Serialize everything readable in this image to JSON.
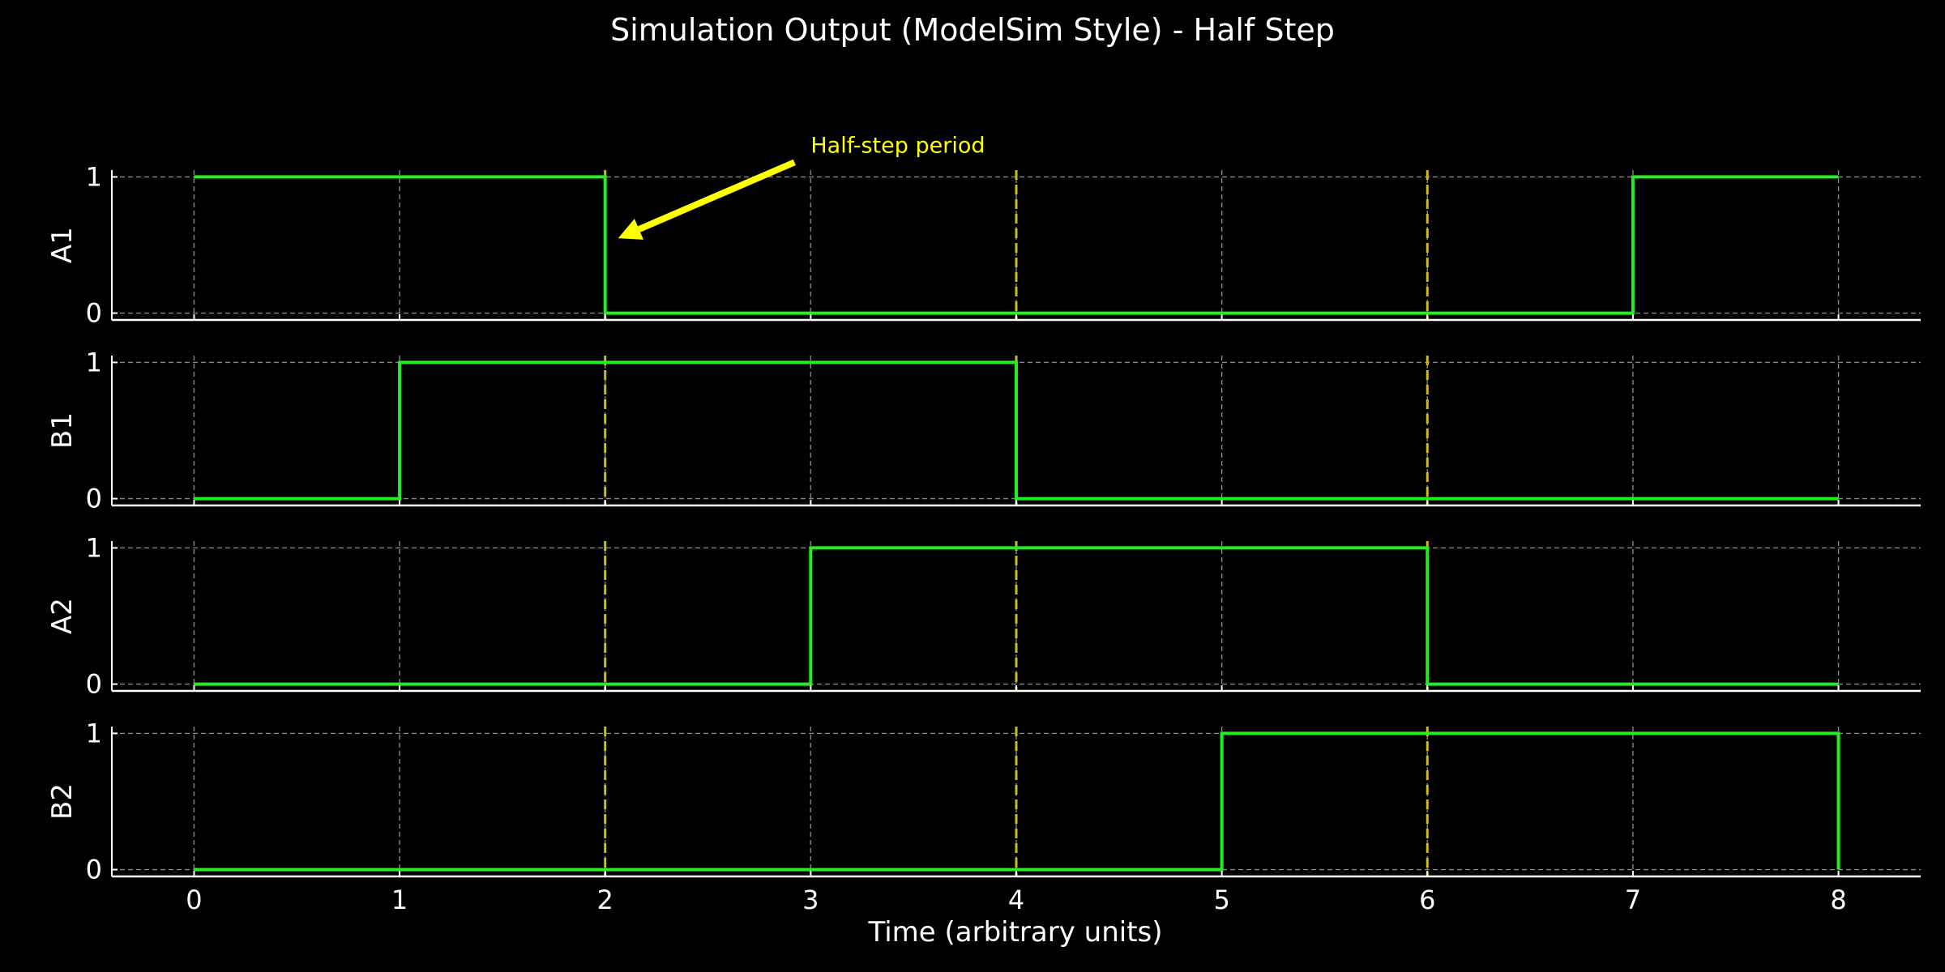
{
  "chart_data": {
    "type": "line",
    "title": "Simulation Output (ModelSim Style) - Half Step",
    "xlabel": "Time (arbitrary units)",
    "x_ticks": [
      0,
      1,
      2,
      3,
      4,
      5,
      6,
      7,
      8
    ],
    "x_tick_labels": [
      "0",
      "1",
      "2",
      "3",
      "4",
      "5",
      "6",
      "7",
      "8"
    ],
    "xlim": [
      -0.4,
      8.4
    ],
    "ylim": [
      -0.05,
      1.05
    ],
    "y_ticks": [
      0,
      1
    ],
    "y_tick_labels": [
      "0",
      "1"
    ],
    "grid": true,
    "step": "post",
    "x": [
      0,
      1,
      2,
      3,
      4,
      5,
      6,
      7,
      8
    ],
    "series": [
      {
        "name": "A1",
        "values": [
          1,
          1,
          0,
          0,
          0,
          0,
          0,
          1,
          1
        ]
      },
      {
        "name": "B1",
        "values": [
          0,
          1,
          1,
          1,
          0,
          0,
          0,
          0,
          0
        ]
      },
      {
        "name": "A2",
        "values": [
          0,
          0,
          0,
          1,
          1,
          1,
          0,
          0,
          0
        ]
      },
      {
        "name": "B2",
        "values": [
          0,
          0,
          0,
          0,
          0,
          1,
          1,
          1,
          0
        ]
      }
    ],
    "reference_lines_x": [
      2,
      4,
      6
    ],
    "annotation": {
      "text": "Half-step period",
      "text_xy": [
        3,
        1.25
      ],
      "arrow_to_xy": [
        2,
        0.55
      ],
      "axis": "A1"
    },
    "colors": {
      "background": "#000000",
      "signal": "#22ee22",
      "reference": "#ccbb22",
      "annotation": "#ffff00",
      "grid": "#888888",
      "axis": "#ffffff",
      "text": "#ffffff"
    }
  }
}
